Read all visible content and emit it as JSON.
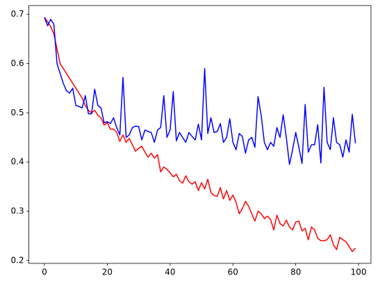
{
  "chart_data": {
    "type": "line",
    "x": [
      0,
      1,
      2,
      3,
      4,
      5,
      6,
      7,
      8,
      9,
      10,
      11,
      12,
      13,
      14,
      15,
      16,
      17,
      18,
      19,
      20,
      21,
      22,
      23,
      24,
      25,
      26,
      27,
      28,
      29,
      30,
      31,
      32,
      33,
      34,
      35,
      36,
      37,
      38,
      39,
      40,
      41,
      42,
      43,
      44,
      45,
      46,
      47,
      48,
      49,
      50,
      51,
      52,
      53,
      54,
      55,
      56,
      57,
      58,
      59,
      60,
      61,
      62,
      63,
      64,
      65,
      66,
      67,
      68,
      69,
      70,
      71,
      72,
      73,
      74,
      75,
      76,
      77,
      78,
      79,
      80,
      81,
      82,
      83,
      84,
      85,
      86,
      87,
      88,
      89,
      90,
      91,
      92,
      93,
      94,
      95,
      96,
      97,
      98,
      99
    ],
    "series": [
      {
        "color": "#ff0000",
        "values": [
          0.694,
          0.685,
          0.675,
          0.66,
          0.63,
          0.6,
          0.59,
          0.58,
          0.57,
          0.56,
          0.55,
          0.54,
          0.53,
          0.515,
          0.505,
          0.5,
          0.505,
          0.495,
          0.49,
          0.475,
          0.48,
          0.467,
          0.467,
          0.46,
          0.442,
          0.455,
          0.44,
          0.448,
          0.435,
          0.422,
          0.428,
          0.432,
          0.42,
          0.41,
          0.418,
          0.408,
          0.415,
          0.38,
          0.39,
          0.385,
          0.378,
          0.37,
          0.375,
          0.362,
          0.357,
          0.372,
          0.36,
          0.355,
          0.36,
          0.342,
          0.358,
          0.345,
          0.365,
          0.338,
          0.332,
          0.33,
          0.348,
          0.325,
          0.342,
          0.322,
          0.333,
          0.318,
          0.295,
          0.305,
          0.32,
          0.31,
          0.295,
          0.28,
          0.3,
          0.295,
          0.285,
          0.29,
          0.283,
          0.262,
          0.292,
          0.275,
          0.27,
          0.282,
          0.268,
          0.262,
          0.278,
          0.28,
          0.26,
          0.265,
          0.242,
          0.268,
          0.262,
          0.245,
          0.24,
          0.24,
          0.242,
          0.252,
          0.232,
          0.222,
          0.247,
          0.242,
          0.238,
          0.228,
          0.218,
          0.225
        ]
      },
      {
        "color": "#0000ff",
        "values": [
          0.694,
          0.677,
          0.69,
          0.68,
          0.6,
          0.58,
          0.56,
          0.545,
          0.54,
          0.55,
          0.515,
          0.513,
          0.51,
          0.535,
          0.498,
          0.498,
          0.548,
          0.515,
          0.51,
          0.48,
          0.482,
          0.478,
          0.49,
          0.47,
          0.455,
          0.572,
          0.45,
          0.455,
          0.47,
          0.473,
          0.472,
          0.445,
          0.465,
          0.462,
          0.46,
          0.44,
          0.465,
          0.47,
          0.535,
          0.45,
          0.465,
          0.543,
          0.443,
          0.46,
          0.45,
          0.44,
          0.46,
          0.452,
          0.445,
          0.477,
          0.445,
          0.59,
          0.458,
          0.49,
          0.46,
          0.462,
          0.478,
          0.44,
          0.45,
          0.488,
          0.44,
          0.425,
          0.458,
          0.452,
          0.418,
          0.445,
          0.45,
          0.43,
          0.533,
          0.495,
          0.44,
          0.425,
          0.44,
          0.432,
          0.47,
          0.45,
          0.496,
          0.45,
          0.395,
          0.425,
          0.46,
          0.43,
          0.397,
          0.517,
          0.42,
          0.435,
          0.435,
          0.476,
          0.398,
          0.552,
          0.44,
          0.425,
          0.49,
          0.44,
          0.435,
          0.41,
          0.445,
          0.42,
          0.497,
          0.438
        ]
      }
    ],
    "xlim": [
      -4.95,
      103.95
    ],
    "xticks": [
      0,
      20,
      40,
      60,
      80,
      100
    ],
    "ylim": [
      0.194,
      0.718
    ],
    "yticks": [
      0.2,
      0.3,
      0.4,
      0.5,
      0.6,
      0.7
    ]
  }
}
